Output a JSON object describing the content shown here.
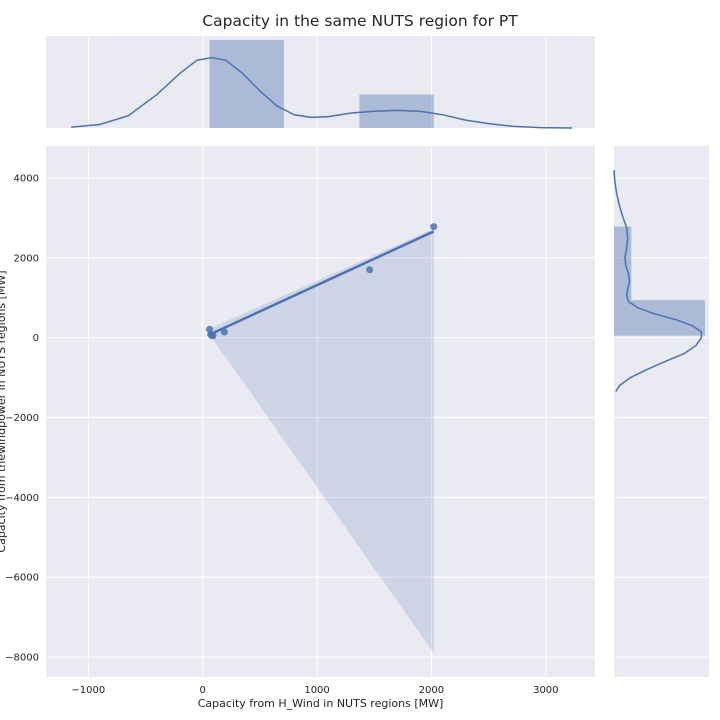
{
  "chart_data": {
    "type": "scatter",
    "title": "Capacity in the same NUTS region for PT",
    "xlabel": "Capacity from H_Wind in NUTS regions [MW]",
    "ylabel": "Capacity from thewindpower in NUTS regions [MW]",
    "xlim": [
      -1370,
      3430
    ],
    "ylim": [
      -8500,
      4800
    ],
    "x_ticks": [
      -1000,
      0,
      1000,
      2000,
      3000
    ],
    "y_ticks": [
      -8000,
      -6000,
      -4000,
      -2000,
      0,
      2000,
      4000
    ],
    "x_tick_labels": [
      "−1000",
      "0",
      "1000",
      "2000",
      "3000"
    ],
    "y_tick_labels": [
      "−8000",
      "−6000",
      "−4000",
      "−2000",
      "0",
      "2000",
      "4000"
    ],
    "grid": true,
    "points": [
      {
        "x": 60,
        "y": 210
      },
      {
        "x": 70,
        "y": 80
      },
      {
        "x": 80,
        "y": 50
      },
      {
        "x": 90,
        "y": 50
      },
      {
        "x": 190,
        "y": 140
      },
      {
        "x": 1460,
        "y": 1700
      },
      {
        "x": 2020,
        "y": 2780
      }
    ],
    "regression": {
      "x": [
        60,
        2020
      ],
      "y": [
        75,
        2660
      ]
    },
    "confidence_band": {
      "x": [
        60,
        2020
      ],
      "upper": [
        225,
        2730
      ],
      "lower": [
        80,
        -7900
      ]
    },
    "marginal_x": {
      "hist_bins": [
        {
          "x0": 60,
          "x1": 710,
          "density": 1.0
        },
        {
          "x0": 1370,
          "x1": 2020,
          "density": 0.38
        }
      ],
      "kde": [
        [
          -1150,
          0.01
        ],
        [
          -900,
          0.04
        ],
        [
          -650,
          0.14
        ],
        [
          -400,
          0.38
        ],
        [
          -200,
          0.62
        ],
        [
          -50,
          0.77
        ],
        [
          80,
          0.8
        ],
        [
          200,
          0.77
        ],
        [
          350,
          0.62
        ],
        [
          500,
          0.42
        ],
        [
          650,
          0.25
        ],
        [
          800,
          0.15
        ],
        [
          950,
          0.12
        ],
        [
          1100,
          0.13
        ],
        [
          1300,
          0.17
        ],
        [
          1500,
          0.19
        ],
        [
          1700,
          0.2
        ],
        [
          1900,
          0.19
        ],
        [
          2100,
          0.15
        ],
        [
          2300,
          0.09
        ],
        [
          2500,
          0.05
        ],
        [
          2700,
          0.02
        ],
        [
          2950,
          0.005
        ],
        [
          3230,
          0.0
        ]
      ]
    },
    "marginal_y": {
      "hist_bins": [
        {
          "y0": 50,
          "y1": 940,
          "density": 1.0
        },
        {
          "y0": 940,
          "y1": 2780,
          "density": 0.19
        }
      ],
      "kde": [
        [
          -1350,
          0.02
        ],
        [
          -1200,
          0.06
        ],
        [
          -1000,
          0.18
        ],
        [
          -800,
          0.36
        ],
        [
          -600,
          0.56
        ],
        [
          -400,
          0.77
        ],
        [
          -200,
          0.9
        ],
        [
          0,
          0.96
        ],
        [
          150,
          0.96
        ],
        [
          300,
          0.86
        ],
        [
          450,
          0.68
        ],
        [
          600,
          0.44
        ],
        [
          750,
          0.26
        ],
        [
          900,
          0.16
        ],
        [
          1050,
          0.14
        ],
        [
          1200,
          0.15
        ],
        [
          1400,
          0.17
        ],
        [
          1600,
          0.16
        ],
        [
          1800,
          0.13
        ],
        [
          2000,
          0.12
        ],
        [
          2250,
          0.14
        ],
        [
          2500,
          0.15
        ],
        [
          2750,
          0.14
        ],
        [
          3000,
          0.1
        ],
        [
          3300,
          0.06
        ],
        [
          3600,
          0.03
        ],
        [
          3900,
          0.01
        ],
        [
          4200,
          0.0
        ]
      ]
    },
    "colors": {
      "background": "#EAEAF2",
      "grid": "#FFFFFF",
      "series": "#4C72B0",
      "band": "#4C72B0",
      "text": "#262626"
    }
  }
}
